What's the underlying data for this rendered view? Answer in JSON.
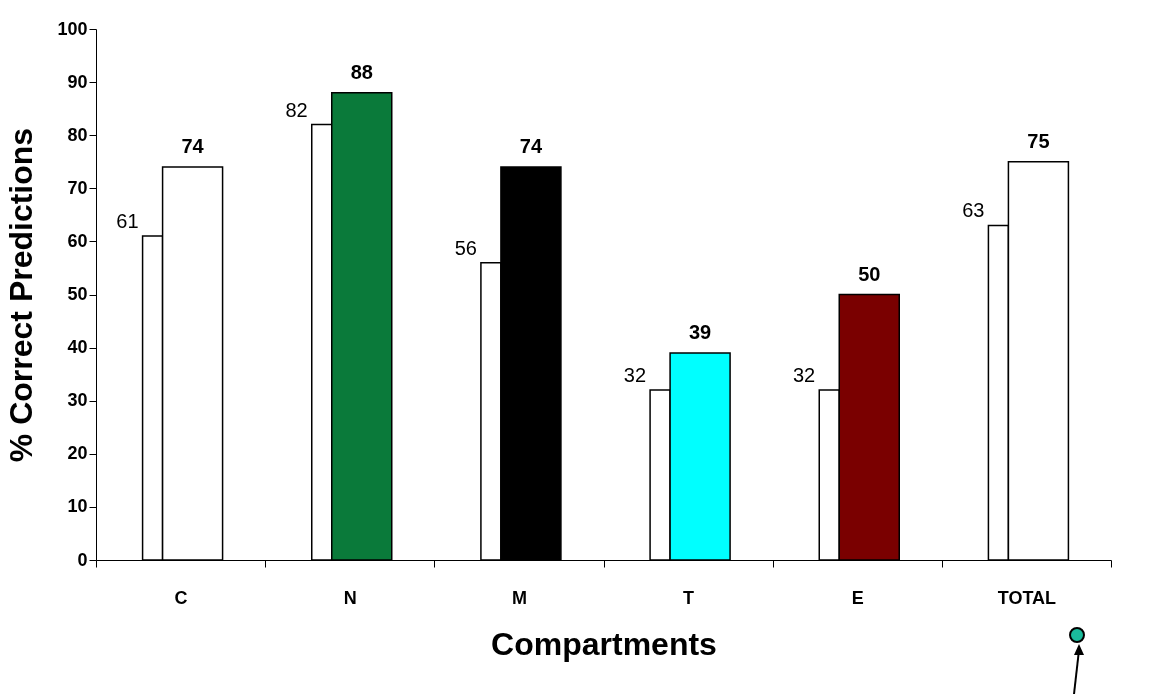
{
  "chart_data": {
    "type": "bar",
    "xlabel": "Compartments",
    "ylabel": "% Correct Predictions",
    "categories": [
      "C",
      "N",
      "M",
      "T",
      "E",
      "TOTAL"
    ],
    "series": [
      {
        "color": "#ffffff",
        "values": [
          61,
          82,
          56,
          32,
          32,
          63
        ]
      },
      {
        "colors": [
          "#ffffff",
          "#0a7a3a",
          "#000000",
          "#00ffff",
          "#7a0000",
          "#ffffff"
        ],
        "values": [
          74,
          88,
          74,
          39,
          50,
          75
        ]
      }
    ],
    "ylim": [
      0,
      100
    ],
    "yticks": [
      0,
      10,
      20,
      30,
      40,
      50,
      60,
      70,
      80,
      90,
      100
    ],
    "grid": false,
    "data_labels": true
  }
}
